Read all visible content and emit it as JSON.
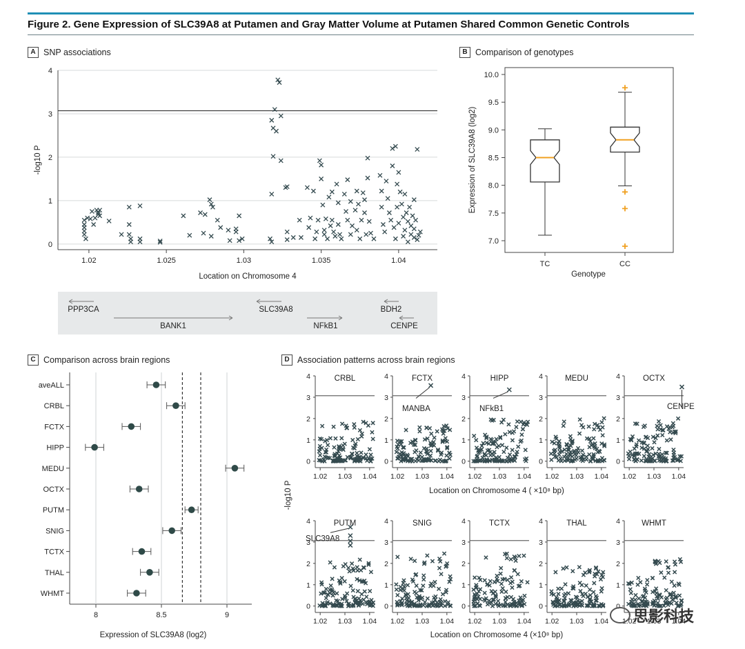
{
  "figure": {
    "title": "Figure 2. Gene Expression of SLC39A8 at Putamen and Gray Matter Volume at Putamen Shared Common Genetic Controls"
  },
  "colors": {
    "accent": "#1f8fb5",
    "marker": "#344a4f",
    "orange": "#f0a020",
    "grey_band": "#e7e9ea"
  },
  "panels": {
    "A": {
      "letter": "A",
      "title": "SNP associations"
    },
    "B": {
      "letter": "B",
      "title": "Comparison of genotypes"
    },
    "C": {
      "letter": "C",
      "title": "Comparison across brain regions"
    },
    "D": {
      "letter": "D",
      "title": "Association patterns across brain regions"
    }
  },
  "watermark": {
    "text": "思影科技"
  },
  "chart_data": [
    {
      "panel": "A",
      "type": "scatter",
      "xlabel": "Location on Chromosome 4",
      "ylabel": "-log10 P",
      "xlim": [
        1.018,
        1.0425
      ],
      "ylim": [
        0,
        4
      ],
      "xticks": [
        "1.02",
        "1.025",
        "1.03",
        "1.035",
        "1.04"
      ],
      "yticks": [
        "0",
        "1",
        "2",
        "3",
        "4"
      ],
      "threshold": 3.07,
      "grid": true,
      "points": [
        [
          1.0197,
          0.55
        ],
        [
          1.0197,
          0.45
        ],
        [
          1.0197,
          0.38
        ],
        [
          1.0197,
          0.3
        ],
        [
          1.0197,
          0.22
        ],
        [
          1.0198,
          0.12
        ],
        [
          1.0199,
          0.6
        ],
        [
          1.0201,
          0.58
        ],
        [
          1.0202,
          0.75
        ],
        [
          1.0203,
          0.45
        ],
        [
          1.0204,
          0.6
        ],
        [
          1.0205,
          0.78
        ],
        [
          1.0206,
          0.72
        ],
        [
          1.0206,
          0.68
        ],
        [
          1.0207,
          0.65
        ],
        [
          1.0207,
          0.78
        ],
        [
          1.0213,
          0.53
        ],
        [
          1.0221,
          0.22
        ],
        [
          1.0226,
          0.85
        ],
        [
          1.0226,
          0.45
        ],
        [
          1.0226,
          0.22
        ],
        [
          1.0227,
          0.05
        ],
        [
          1.0227,
          0.12
        ],
        [
          1.0233,
          0.88
        ],
        [
          1.0233,
          0.12
        ],
        [
          1.0233,
          0.05
        ],
        [
          1.0246,
          0.04
        ],
        [
          1.0246,
          0.07
        ],
        [
          1.0261,
          0.65
        ],
        [
          1.0265,
          0.2
        ],
        [
          1.0272,
          0.72
        ],
        [
          1.0274,
          0.25
        ],
        [
          1.0275,
          0.68
        ],
        [
          1.0278,
          1.02
        ],
        [
          1.0279,
          0.18
        ],
        [
          1.0279,
          0.92
        ],
        [
          1.028,
          0.85
        ],
        [
          1.0283,
          0.55
        ],
        [
          1.0285,
          0.38
        ],
        [
          1.029,
          0.32
        ],
        [
          1.0291,
          0.08
        ],
        [
          1.0295,
          0.35
        ],
        [
          1.0295,
          0.28
        ],
        [
          1.0297,
          0.08
        ],
        [
          1.0297,
          0.65
        ],
        [
          1.0299,
          0.12
        ],
        [
          1.0317,
          0.12
        ],
        [
          1.0318,
          1.15
        ],
        [
          1.0318,
          0.05
        ],
        [
          1.0318,
          2.85
        ],
        [
          1.0319,
          2.67
        ],
        [
          1.0319,
          2.02
        ],
        [
          1.032,
          3.1
        ],
        [
          1.0321,
          2.6
        ],
        [
          1.0322,
          3.78
        ],
        [
          1.0323,
          3.72
        ],
        [
          1.0324,
          2.95
        ],
        [
          1.0324,
          1.92
        ],
        [
          1.0327,
          1.3
        ],
        [
          1.0328,
          1.32
        ],
        [
          1.0328,
          0.28
        ],
        [
          1.0328,
          0.1
        ],
        [
          1.0332,
          0.15
        ],
        [
          1.0336,
          0.55
        ],
        [
          1.0337,
          0.15
        ],
        [
          1.0341,
          1.3
        ],
        [
          1.0342,
          0.38
        ],
        [
          1.0343,
          0.6
        ],
        [
          1.0345,
          1.22
        ],
        [
          1.0346,
          0.12
        ],
        [
          1.0347,
          0.28
        ],
        [
          1.0348,
          0.55
        ],
        [
          1.0349,
          1.92
        ],
        [
          1.035,
          1.82
        ],
        [
          1.035,
          1.5
        ],
        [
          1.0351,
          0.9
        ],
        [
          1.0352,
          0.32
        ],
        [
          1.0352,
          0.22
        ],
        [
          1.0353,
          0.58
        ],
        [
          1.0354,
          0.12
        ],
        [
          1.0355,
          1.08
        ],
        [
          1.0356,
          0.42
        ],
        [
          1.0357,
          1.2
        ],
        [
          1.0357,
          0.55
        ],
        [
          1.0358,
          0.28
        ],
        [
          1.0359,
          0.18
        ],
        [
          1.036,
          1.38
        ],
        [
          1.0361,
          0.95
        ],
        [
          1.0361,
          0.45
        ],
        [
          1.0362,
          0.22
        ],
        [
          1.0363,
          0.12
        ],
        [
          1.0365,
          1.15
        ],
        [
          1.0366,
          0.75
        ],
        [
          1.0367,
          1.48
        ],
        [
          1.0367,
          0.55
        ],
        [
          1.0369,
          0.98
        ],
        [
          1.0369,
          0.22
        ],
        [
          1.037,
          0.42
        ],
        [
          1.0372,
          0.78
        ],
        [
          1.0373,
          1.22
        ],
        [
          1.0373,
          0.32
        ],
        [
          1.0374,
          0.92
        ],
        [
          1.0375,
          0.12
        ],
        [
          1.0376,
          0.55
        ],
        [
          1.0377,
          1.18
        ],
        [
          1.0378,
          1.02
        ],
        [
          1.0378,
          0.72
        ],
        [
          1.0379,
          0.22
        ],
        [
          1.038,
          1.98
        ],
        [
          1.038,
          1.52
        ],
        [
          1.0381,
          0.52
        ],
        [
          1.0382,
          0.25
        ],
        [
          1.0384,
          0.12
        ],
        [
          1.0388,
          1.58
        ],
        [
          1.0389,
          1.22
        ],
        [
          1.0389,
          0.85
        ],
        [
          1.039,
          0.45
        ],
        [
          1.0391,
          0.28
        ],
        [
          1.0392,
          1.45
        ],
        [
          1.0393,
          1.05
        ],
        [
          1.0394,
          0.72
        ],
        [
          1.0395,
          0.55
        ],
        [
          1.0396,
          2.2
        ],
        [
          1.0396,
          1.8
        ],
        [
          1.0397,
          0.38
        ],
        [
          1.0398,
          2.25
        ],
        [
          1.0398,
          0.12
        ],
        [
          1.0399,
          1.38
        ],
        [
          1.0399,
          0.85
        ],
        [
          1.04,
          1.65
        ],
        [
          1.04,
          0.48
        ],
        [
          1.0401,
          1.2
        ],
        [
          1.0402,
          0.92
        ],
        [
          1.0403,
          0.62
        ],
        [
          1.0403,
          0.18
        ],
        [
          1.0404,
          1.15
        ],
        [
          1.0404,
          0.32
        ],
        [
          1.0405,
          0.72
        ],
        [
          1.0406,
          0.05
        ],
        [
          1.0406,
          0.52
        ],
        [
          1.0407,
          0.85
        ],
        [
          1.0408,
          0.22
        ],
        [
          1.0408,
          0.42
        ],
        [
          1.0409,
          0.65
        ],
        [
          1.041,
          1.02
        ],
        [
          1.041,
          0.15
        ],
        [
          1.041,
          0.35
        ],
        [
          1.0411,
          0.55
        ],
        [
          1.0412,
          0.1
        ],
        [
          1.0412,
          2.18
        ],
        [
          1.0413,
          0.2
        ],
        [
          1.0414,
          0.28
        ]
      ]
    },
    {
      "panel": "B",
      "type": "box",
      "xlabel": "Genotype",
      "ylabel": "Expression of SLC39A8 (log2)",
      "ylim": [
        6.8,
        10.0
      ],
      "yticks": [
        "7.0",
        "7.5",
        "8.0",
        "8.5",
        "9.0",
        "9.5",
        "10.0"
      ],
      "categories": [
        "TC",
        "CC"
      ],
      "boxes": [
        {
          "whisker_low": 7.1,
          "q1": 8.06,
          "median": 8.5,
          "q3": 8.82,
          "whisker_high": 9.02,
          "outliers": []
        },
        {
          "whisker_low": 7.99,
          "q1": 8.6,
          "median": 8.82,
          "q3": 9.05,
          "whisker_high": 9.68,
          "outliers": [
            9.76,
            7.88,
            7.58,
            6.9
          ]
        }
      ]
    },
    {
      "panel": "C",
      "type": "errorbar",
      "xlabel": "Expression of SLC39A8 (log2)",
      "xlim": [
        7.8,
        9.15
      ],
      "xticks": [
        "8",
        "8.5",
        "9"
      ],
      "reference_lines": [
        8.66,
        8.8
      ],
      "categories": [
        "aveALL",
        "CRBL",
        "FCTX",
        "HIPP",
        "MEDU",
        "OCTX",
        "PUTM",
        "SNIG",
        "TCTX",
        "THAL",
        "WHMT"
      ],
      "values": [
        8.46,
        8.61,
        8.27,
        7.99,
        9.06,
        8.33,
        8.73,
        8.58,
        8.35,
        8.41,
        8.31
      ],
      "errors": [
        0.07,
        0.07,
        0.07,
        0.07,
        0.07,
        0.07,
        0.05,
        0.07,
        0.07,
        0.07,
        0.07
      ]
    },
    {
      "panel": "D",
      "type": "scatter",
      "xlabel": "Location on Chromosome 4 ( ×10⁸ bp)",
      "xlabel2": "Location on Chromosome 4 (×10⁸ bp)",
      "ylabel": "-log10 P",
      "xlim": [
        1.018,
        1.042
      ],
      "ylim": [
        -0.2,
        4
      ],
      "xticks": [
        "1.02",
        "1.03",
        "1.04"
      ],
      "yticks": [
        "0",
        "1",
        "2",
        "3",
        "4"
      ],
      "threshold": 3.07,
      "subplots": [
        {
          "name": "CRBL",
          "max": 1.85,
          "peak": null
        },
        {
          "name": "FCTX",
          "max": 1.7,
          "peak": {
            "x": 1.0335,
            "y": 3.55,
            "label": "MANBA"
          }
        },
        {
          "name": "HIPP",
          "max": 2.1,
          "peak": {
            "x": 1.034,
            "y": 3.35,
            "label": "NFkB1"
          }
        },
        {
          "name": "MEDU",
          "max": 2.05,
          "peak": null
        },
        {
          "name": "OCTX",
          "max": 2.0,
          "peak": {
            "x": 1.0413,
            "y": 3.48,
            "label": "CENPE"
          }
        },
        {
          "name": "PUTM",
          "max": 2.2,
          "peak": {
            "x": 1.0322,
            "y": 3.7,
            "label": "SLC39A8"
          }
        },
        {
          "name": "SNIG",
          "max": 2.5,
          "peak": null
        },
        {
          "name": "TCTX",
          "max": 2.5,
          "peak": null
        },
        {
          "name": "THAL",
          "max": 1.85,
          "peak": null
        },
        {
          "name": "WHMT",
          "max": 2.2,
          "peak": null
        }
      ]
    }
  ],
  "genes": [
    {
      "name": "PPP3CA",
      "dir": "left"
    },
    {
      "name": "BANK1",
      "dir": "right"
    },
    {
      "name": "SLC39A8",
      "dir": "left"
    },
    {
      "name": "NFkB1",
      "dir": "right"
    },
    {
      "name": "BDH2",
      "dir": "left"
    },
    {
      "name": "CENPE",
      "dir": "left"
    }
  ]
}
